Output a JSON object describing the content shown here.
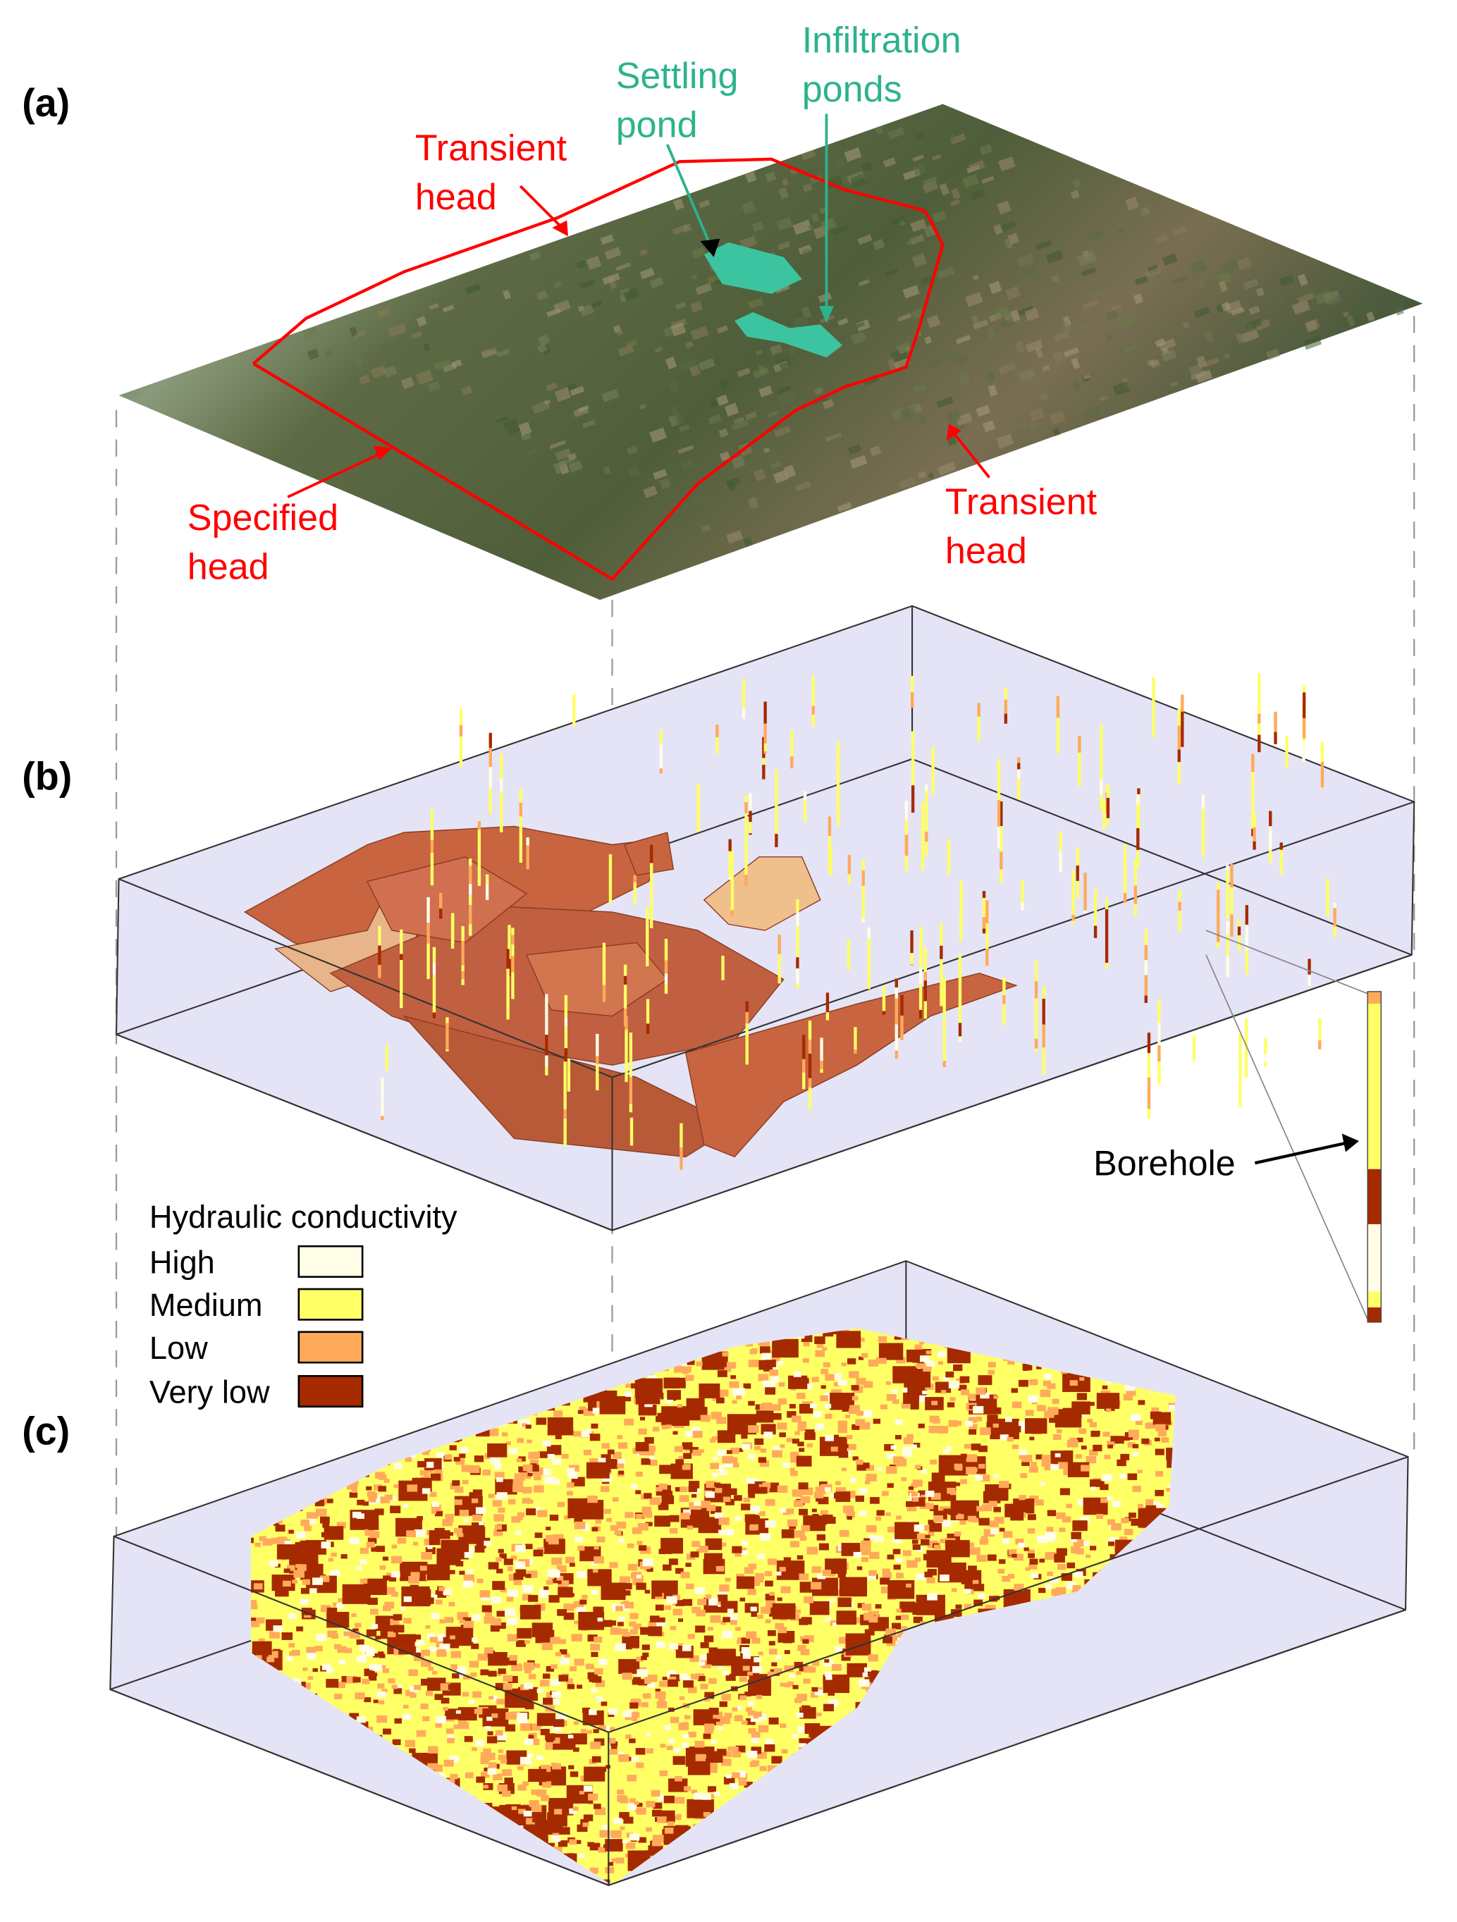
{
  "panels": {
    "a": "(a)",
    "b": "(b)",
    "c": "(c)"
  },
  "annotations": {
    "settling_pond": [
      "Settling",
      "pond"
    ],
    "infiltration_ponds": [
      "Infiltration",
      "ponds"
    ],
    "transient_head_top": [
      "Transient",
      "head"
    ],
    "transient_head_bottom": [
      "Transient",
      "head"
    ],
    "specified_head": [
      "Specified",
      "head"
    ],
    "borehole": "Borehole"
  },
  "legend": {
    "title": "Hydraulic conductivity",
    "items": [
      {
        "label": "High",
        "color": "#fffde6"
      },
      {
        "label": "Medium",
        "color": "#ffff66"
      },
      {
        "label": "Low",
        "color": "#ffaa5a"
      },
      {
        "label": "Very low",
        "color": "#a52a00"
      }
    ]
  },
  "colors": {
    "boundary": "#ff0000",
    "ponds_text": "#2db38c",
    "pond_fill": "#3cc4a0",
    "box_fill": "#e4e4f6",
    "surface": "#c8643f"
  }
}
